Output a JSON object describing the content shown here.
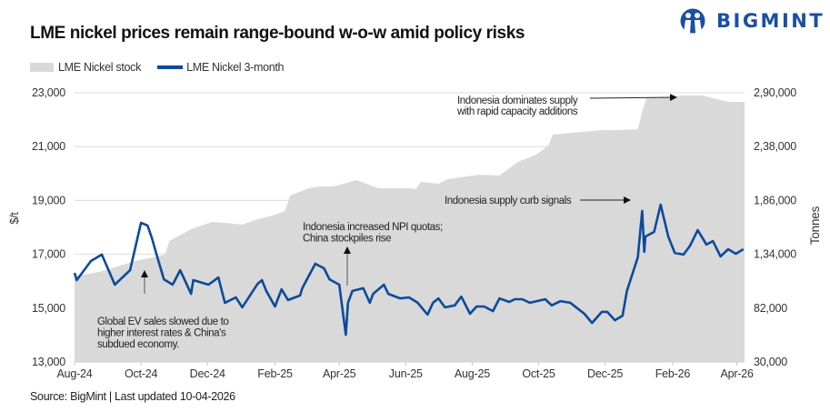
{
  "title": "LME nickel prices remain range-bound w-o-w amid policy risks",
  "logo": {
    "text": "BIGMINT",
    "color": "#1b4fa2",
    "icon": "bigmint-people-icon"
  },
  "source": "Source: BigMint | Last updated 10-04-2026",
  "chart_data": {
    "type": "line+area",
    "title": "LME nickel prices remain range-bound w-o-w amid policy risks",
    "ylabel": "$/t",
    "y2label": "Tonnes",
    "ylim": [
      13000,
      23000
    ],
    "y2lim": [
      30000,
      290000
    ],
    "xlim": [
      "2024-08-01",
      "2026-04-08"
    ],
    "grid": true,
    "legend_position": "top-left",
    "yticks": [
      "13,000",
      "15,000",
      "17,000",
      "19,000",
      "21,000",
      "23,000"
    ],
    "yticks_values": [
      13000,
      15000,
      17000,
      19000,
      21000,
      23000
    ],
    "y2ticks": [
      "30,000",
      "82,000",
      "1,34,000",
      "1,86,000",
      "2,38,000",
      "2,90,000"
    ],
    "xticks": [
      "Aug-24",
      "Oct-24",
      "Dec-24",
      "Feb-25",
      "Apr-25",
      "Jun-25",
      "Aug-25",
      "Oct-25",
      "Dec-25",
      "Feb-26",
      "Apr-26"
    ],
    "xticks_dates": [
      "2024-08-01",
      "2024-10-01",
      "2024-12-01",
      "2025-02-01",
      "2025-04-01",
      "2025-06-01",
      "2025-08-01",
      "2025-10-01",
      "2025-12-01",
      "2026-02-01",
      "2026-04-01"
    ],
    "series": [
      {
        "name": "LME Nickel stock",
        "type": "area",
        "axis": "right",
        "color": "#d9d9d9",
        "x": [
          "2024-08-01",
          "2024-08-19",
          "2024-08-30",
          "2024-09-12",
          "2024-09-26",
          "2024-10-16",
          "2024-10-23",
          "2024-10-27",
          "2024-11-16",
          "2024-12-05",
          "2024-12-17",
          "2025-01-02",
          "2025-01-16",
          "2025-01-30",
          "2025-02-10",
          "2025-02-15",
          "2025-03-04",
          "2025-03-15",
          "2025-03-27",
          "2025-04-17",
          "2025-05-07",
          "2025-06-04",
          "2025-06-10",
          "2025-06-15",
          "2025-07-01",
          "2025-07-10",
          "2025-08-07",
          "2025-08-26",
          "2025-09-12",
          "2025-09-29",
          "2025-10-10",
          "2025-10-14",
          "2025-11-01",
          "2025-11-29",
          "2025-12-15",
          "2025-12-31",
          "2026-01-04",
          "2026-01-08",
          "2026-02-01",
          "2026-02-09",
          "2026-02-28",
          "2026-03-17",
          "2026-03-25",
          "2026-04-07"
        ],
        "values": [
          113000,
          116000,
          118700,
          123100,
          127500,
          131900,
          133600,
          146800,
          158200,
          165300,
          164400,
          162600,
          167900,
          171400,
          175800,
          190700,
          197800,
          199500,
          199500,
          205700,
          197800,
          197800,
          196900,
          203900,
          202200,
          206600,
          210900,
          210100,
          223200,
          230300,
          239100,
          249600,
          251400,
          254000,
          254000,
          254900,
          271600,
          284700,
          285600,
          287400,
          287400,
          283000,
          281200,
          281200
        ]
      },
      {
        "name": "LME Nickel 3-month",
        "type": "line",
        "axis": "left",
        "color": "#0d4a9b",
        "x": [
          "2024-08-01",
          "2024-08-03",
          "2024-08-16",
          "2024-08-26",
          "2024-09-07",
          "2024-09-21",
          "2024-10-01",
          "2024-10-07",
          "2024-10-11",
          "2024-10-16",
          "2024-10-22",
          "2024-10-30",
          "2024-11-06",
          "2024-11-16",
          "2024-11-18",
          "2024-12-02",
          "2024-12-11",
          "2024-12-17",
          "2024-12-27",
          "2025-01-02",
          "2025-01-16",
          "2025-01-20",
          "2025-01-24",
          "2025-02-01",
          "2025-02-07",
          "2025-02-13",
          "2025-02-24",
          "2025-02-26",
          "2025-03-10",
          "2025-03-18",
          "2025-03-23",
          "2025-04-01",
          "2025-04-07",
          "2025-04-09",
          "2025-04-13",
          "2025-04-23",
          "2025-04-29",
          "2025-05-02",
          "2025-05-12",
          "2025-05-16",
          "2025-05-27",
          "2025-06-04",
          "2025-06-12",
          "2025-06-21",
          "2025-06-26",
          "2025-07-01",
          "2025-07-07",
          "2025-07-16",
          "2025-07-22",
          "2025-07-30",
          "2025-08-05",
          "2025-08-12",
          "2025-08-20",
          "2025-08-26",
          "2025-09-04",
          "2025-09-09",
          "2025-09-16",
          "2025-09-23",
          "2025-10-07",
          "2025-10-13",
          "2025-10-21",
          "2025-10-30",
          "2025-11-12",
          "2025-11-19",
          "2025-11-28",
          "2025-12-03",
          "2025-12-10",
          "2025-12-17",
          "2025-12-21",
          "2025-12-31",
          "2026-01-04",
          "2026-01-06",
          "2026-01-07",
          "2026-01-15",
          "2026-01-21",
          "2026-01-28",
          "2026-02-03",
          "2026-02-11",
          "2026-02-17",
          "2026-02-24",
          "2026-03-04",
          "2026-03-10",
          "2026-03-17",
          "2026-03-24",
          "2026-03-31",
          "2026-04-07"
        ],
        "values": [
          16310,
          16040,
          16750,
          16990,
          15870,
          16410,
          18170,
          18070,
          17600,
          16890,
          16070,
          15870,
          16410,
          15530,
          16040,
          15870,
          16140,
          15200,
          15400,
          15030,
          15900,
          16040,
          15640,
          15060,
          15700,
          15300,
          15470,
          15740,
          16650,
          16480,
          16070,
          15870,
          14010,
          15200,
          15640,
          15740,
          15200,
          15530,
          15870,
          15530,
          15360,
          15400,
          15200,
          14760,
          15200,
          15360,
          15030,
          15100,
          15430,
          14790,
          15060,
          15060,
          14890,
          15360,
          15230,
          15330,
          15330,
          15200,
          15330,
          15100,
          15260,
          15200,
          14790,
          14450,
          14860,
          14860,
          14550,
          14720,
          15640,
          16890,
          18610,
          17090,
          17660,
          17830,
          18840,
          17660,
          17050,
          16990,
          17320,
          17900,
          17360,
          17490,
          16920,
          17190,
          17020,
          17190
        ]
      }
    ],
    "annotations": [
      {
        "lines": [
          "Global EV sales slowed due to",
          "higher interest rates & China's",
          "subdued economy."
        ],
        "arrow": "up",
        "date": "2024-10-03"
      },
      {
        "lines": [
          "Indonesia increased NPI quotas;",
          "China stockpiles rise"
        ],
        "arrow": "up",
        "date": "2025-04-08"
      },
      {
        "lines": [
          "Indonesia supply curb signals"
        ],
        "arrow": "right"
      },
      {
        "lines": [
          "Indonesia dominates supply",
          "with rapid capacity additions"
        ],
        "arrow": "right"
      }
    ]
  }
}
